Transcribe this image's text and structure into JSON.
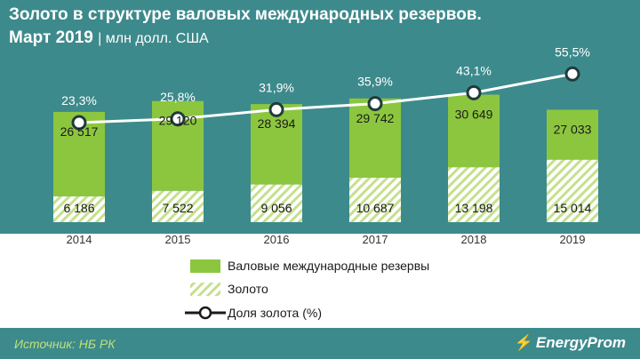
{
  "header": {
    "title_line1": "Золото в структуре валовых международных резервов.",
    "title_line2": "Март 2019",
    "units": "| млн долл. США"
  },
  "chart_data": {
    "type": "bar",
    "categories": [
      "2014",
      "2015",
      "2016",
      "2017",
      "2018",
      "2019"
    ],
    "series": [
      {
        "name": "Валовые международные резервы",
        "kind": "stacked-bar-top",
        "color": "#8cc63f",
        "values": [
          26517,
          29120,
          28394,
          29742,
          30649,
          27033
        ],
        "labels": [
          "26 517",
          "29 120",
          "28 394",
          "29 742",
          "30 649",
          "27 033"
        ]
      },
      {
        "name": "Золото",
        "kind": "stacked-bar-bottom-hatched",
        "color": "#8cc63f",
        "values": [
          6186,
          7522,
          9056,
          10687,
          13198,
          15014
        ],
        "labels": [
          "6 186",
          "7 522",
          "9 056",
          "10 687",
          "13 198",
          "15 014"
        ]
      },
      {
        "name": "Доля золота (%)",
        "kind": "line-markers",
        "color": "#ffffff",
        "values": [
          23.3,
          25.8,
          31.9,
          35.9,
          43.1,
          55.5
        ],
        "labels": [
          "23,3%",
          "25,8%",
          "31,9%",
          "35,9%",
          "43,1%",
          "55,5%"
        ]
      }
    ],
    "grid": false,
    "legend_position": "bottom-center"
  },
  "footer": {
    "source": "Источник: НБ РК",
    "brand": "EnergyProm"
  }
}
